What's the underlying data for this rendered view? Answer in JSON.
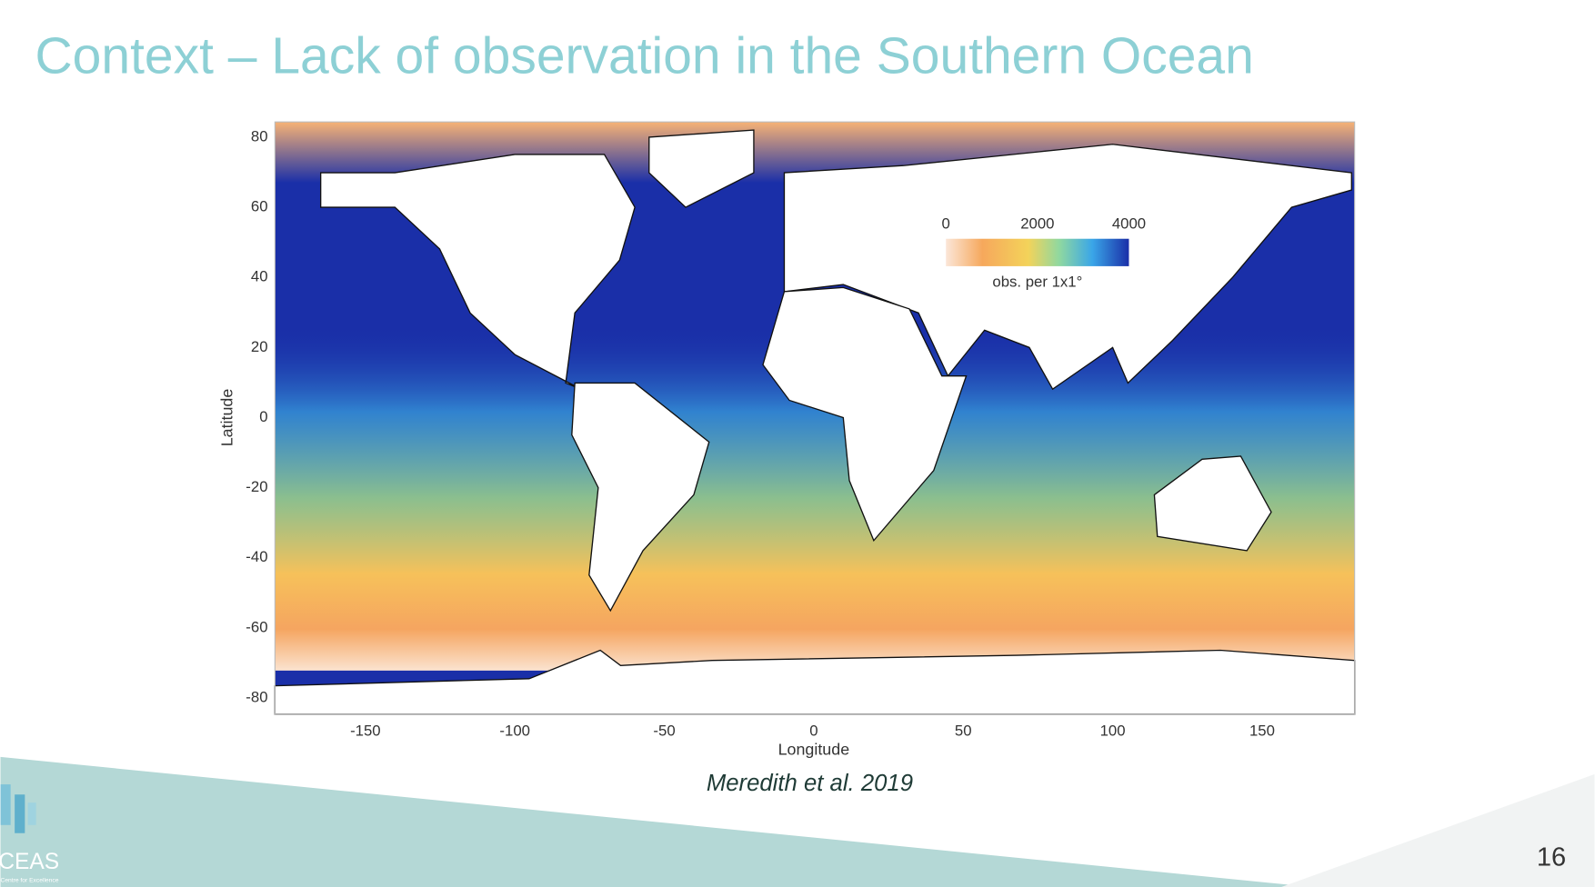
{
  "title": "Context – Lack of observation in the Southern Ocean",
  "figure": {
    "xlabel": "Longitude",
    "ylabel": "Latitude",
    "xticks": [
      -150,
      -100,
      -50,
      0,
      50,
      100,
      150
    ],
    "yticks": [
      80,
      60,
      40,
      20,
      0,
      -20,
      -40,
      -60,
      -80
    ],
    "colorbar": {
      "ticks": [
        0,
        2000,
        4000
      ],
      "label": "obs. per 1x1°"
    }
  },
  "citation": "Meredith et al. 2019",
  "logo": {
    "name": "CEAS",
    "subtitle": "Centre for Excellence"
  },
  "page_number": 16
}
